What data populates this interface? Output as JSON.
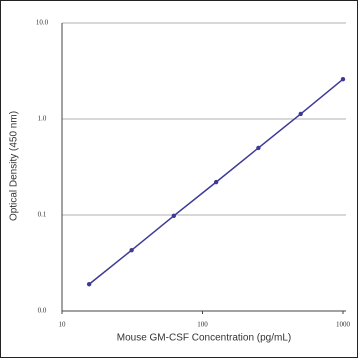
{
  "chart_data": {
    "type": "line",
    "xlabel": "Mouse GM-CSF Concentration (pg/mL)",
    "ylabel": "Optical Density (450 nm)",
    "x": [
      15.6,
      31.3,
      62.5,
      125,
      250,
      500,
      1000
    ],
    "series": [
      {
        "color": "#3d3a96",
        "values": [
          0.019,
          0.043,
          0.098,
          0.22,
          0.5,
          1.13,
          2.6
        ]
      }
    ],
    "xlog": true,
    "ylog": true,
    "xlim": [
      10,
      1000
    ],
    "ylim": [
      0.01,
      10
    ],
    "xticks": [
      10,
      100,
      1000
    ],
    "yticks": [
      {
        "value": 0.01,
        "label": "0.0"
      },
      0.1,
      {
        "value": 1,
        "label": "1.0"
      },
      {
        "value": 10,
        "label": "10.0"
      }
    ],
    "grid": true
  }
}
